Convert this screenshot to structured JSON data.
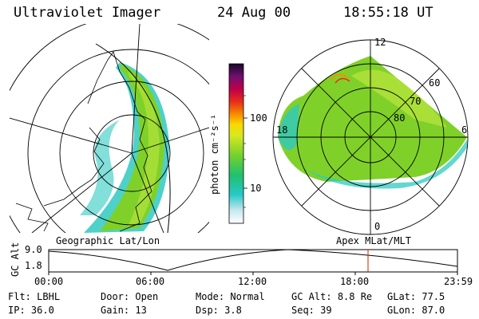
{
  "header": {
    "instrument": "Ultraviolet Imager",
    "date": "24 Aug 00",
    "time": "18:55:18 UT"
  },
  "colorbar": {
    "unit_label": "photon cm⁻²s⁻¹",
    "tick_labels": [
      "100",
      "10"
    ]
  },
  "left_panel": {
    "label": "Geographic Lat/Lon"
  },
  "right_panel": {
    "label": "Apex MLat/MLT",
    "mlt_labels": [
      "12",
      "18",
      "6",
      "0"
    ],
    "mlat_labels": [
      "60",
      "70",
      "80"
    ]
  },
  "altitude_plot": {
    "ylabel": "GC Alt",
    "y_ticks": [
      "9.0",
      "1.8"
    ],
    "x_ticks": [
      "00:00",
      "06:00",
      "12:00",
      "18:00",
      "23:59"
    ]
  },
  "info": {
    "row1": [
      {
        "key": "Flt:",
        "value": "LBHL"
      },
      {
        "key": "Door:",
        "value": "Open"
      },
      {
        "key": "Mode:",
        "value": "Normal"
      },
      {
        "key": "GC Alt:",
        "value": "8.8 Re"
      },
      {
        "key": "GLat:",
        "value": "77.5"
      }
    ],
    "row2": [
      {
        "key": "IP:",
        "value": "36.0"
      },
      {
        "key": "Gain:",
        "value": "13"
      },
      {
        "key": "Dsp:",
        "value": "3.8"
      },
      {
        "key": "Seq:",
        "value": "39"
      },
      {
        "key": "GLon:",
        "value": "87.0"
      }
    ]
  },
  "colors": {
    "marker": "#cc2200",
    "aurora_main": "#7fd12a",
    "aurora_low": "#2fc9c0"
  }
}
